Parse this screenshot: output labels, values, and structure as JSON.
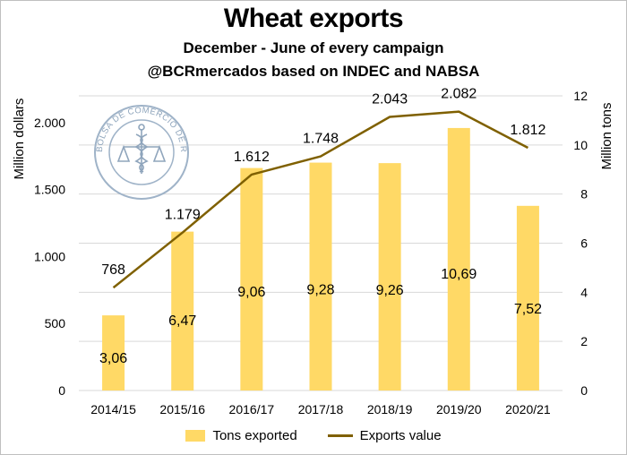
{
  "titles": {
    "main": "Wheat exports",
    "sub1": "December - June of every campaign",
    "sub2": "@BCRmercados based on INDEC and NABSA"
  },
  "seal": {
    "text": "BOLSA DE COMERCIO DE ROSARIO",
    "icon": "caduceus-scales-seal"
  },
  "chart_data": {
    "type": "bar",
    "categories": [
      "2014/15",
      "2015/16",
      "2016/17",
      "2017/18",
      "2018/19",
      "2019/20",
      "2020/21"
    ],
    "series": [
      {
        "name": "Tons exported",
        "type": "bar",
        "axis": "right",
        "values": [
          3.06,
          6.47,
          9.06,
          9.28,
          9.26,
          10.69,
          7.52
        ],
        "labels": [
          "3,06",
          "6,47",
          "9,06",
          "9,28",
          "9,26",
          "10,69",
          "7,52"
        ],
        "color": "#FFD966"
      },
      {
        "name": "Exports value",
        "type": "line",
        "axis": "left",
        "values": [
          768,
          1179,
          1612,
          1748,
          2043,
          2082,
          1812
        ],
        "labels": [
          "768",
          "1.179",
          "1.612",
          "1.748",
          "2.043",
          "2.082",
          "1.812"
        ],
        "color": "#7F6000"
      }
    ],
    "y_left": {
      "label": "Million dollars",
      "range": [
        0,
        2200
      ],
      "ticks": [
        0,
        500,
        1000,
        1500,
        2000
      ],
      "tick_labels": [
        "0",
        "500",
        "1.000",
        "1.500",
        "2.000"
      ]
    },
    "y_right": {
      "label": "Million tons",
      "range": [
        0,
        12
      ],
      "ticks": [
        0,
        2,
        4,
        6,
        8,
        10,
        12
      ],
      "tick_labels": [
        "0",
        "2",
        "4",
        "6",
        "8",
        "10",
        "12"
      ]
    },
    "grid": "horizontal",
    "legend": "bottom"
  }
}
